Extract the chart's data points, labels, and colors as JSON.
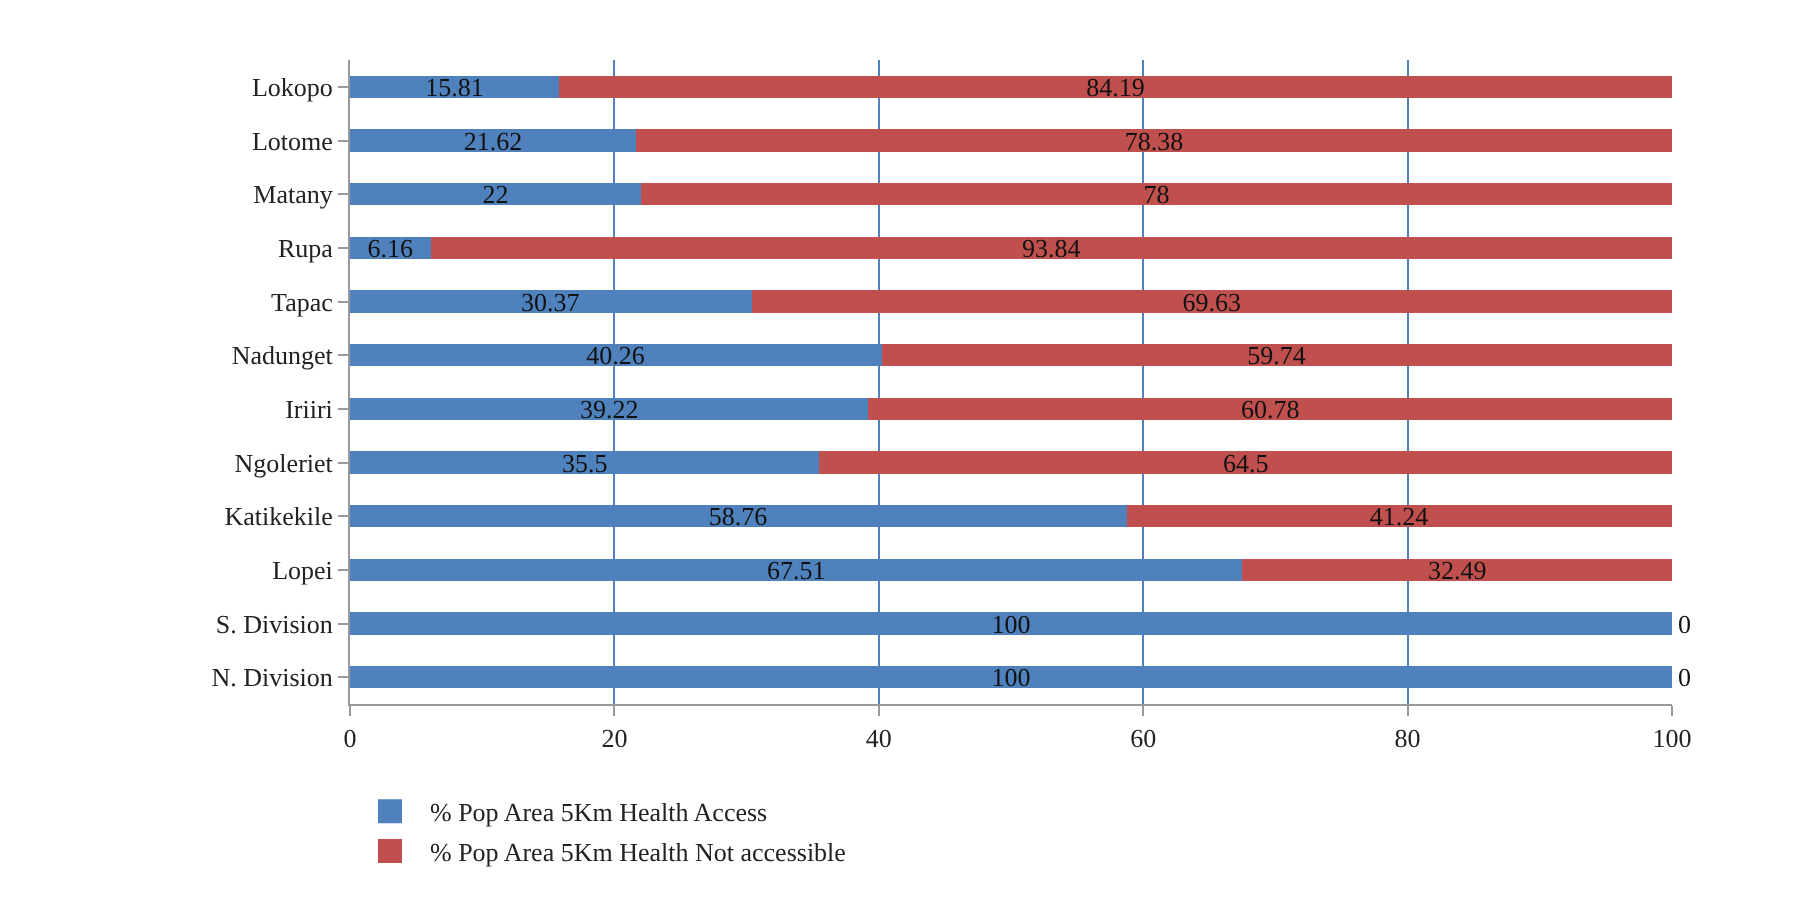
{
  "chart_data": {
    "type": "bar",
    "orientation": "horizontal",
    "stacked": true,
    "categories": [
      "Lokopo",
      "Lotome",
      "Matany",
      "Rupa",
      "Tapac",
      "Nadunget",
      "Iriiri",
      "Ngoleriet",
      "Katikekile",
      "Lopei",
      "S. Division",
      "N. Division"
    ],
    "series": [
      {
        "name": "% Pop Area 5Km Health Access",
        "color": "#4f81bd",
        "values": [
          15.81,
          21.62,
          22,
          6.16,
          30.37,
          40.26,
          39.22,
          35.5,
          58.76,
          67.51,
          100,
          100
        ]
      },
      {
        "name": "% Pop Area 5Km Health Not accessible",
        "color": "#c0504d",
        "values": [
          84.19,
          78.38,
          78,
          93.84,
          69.63,
          59.74,
          60.78,
          64.5,
          41.24,
          32.49,
          0,
          0
        ]
      }
    ],
    "xlim": [
      0,
      100
    ],
    "xticks": [
      0,
      20,
      40,
      60,
      80,
      100
    ],
    "grid": "x",
    "legend": "bottom left",
    "data_labels": true
  }
}
